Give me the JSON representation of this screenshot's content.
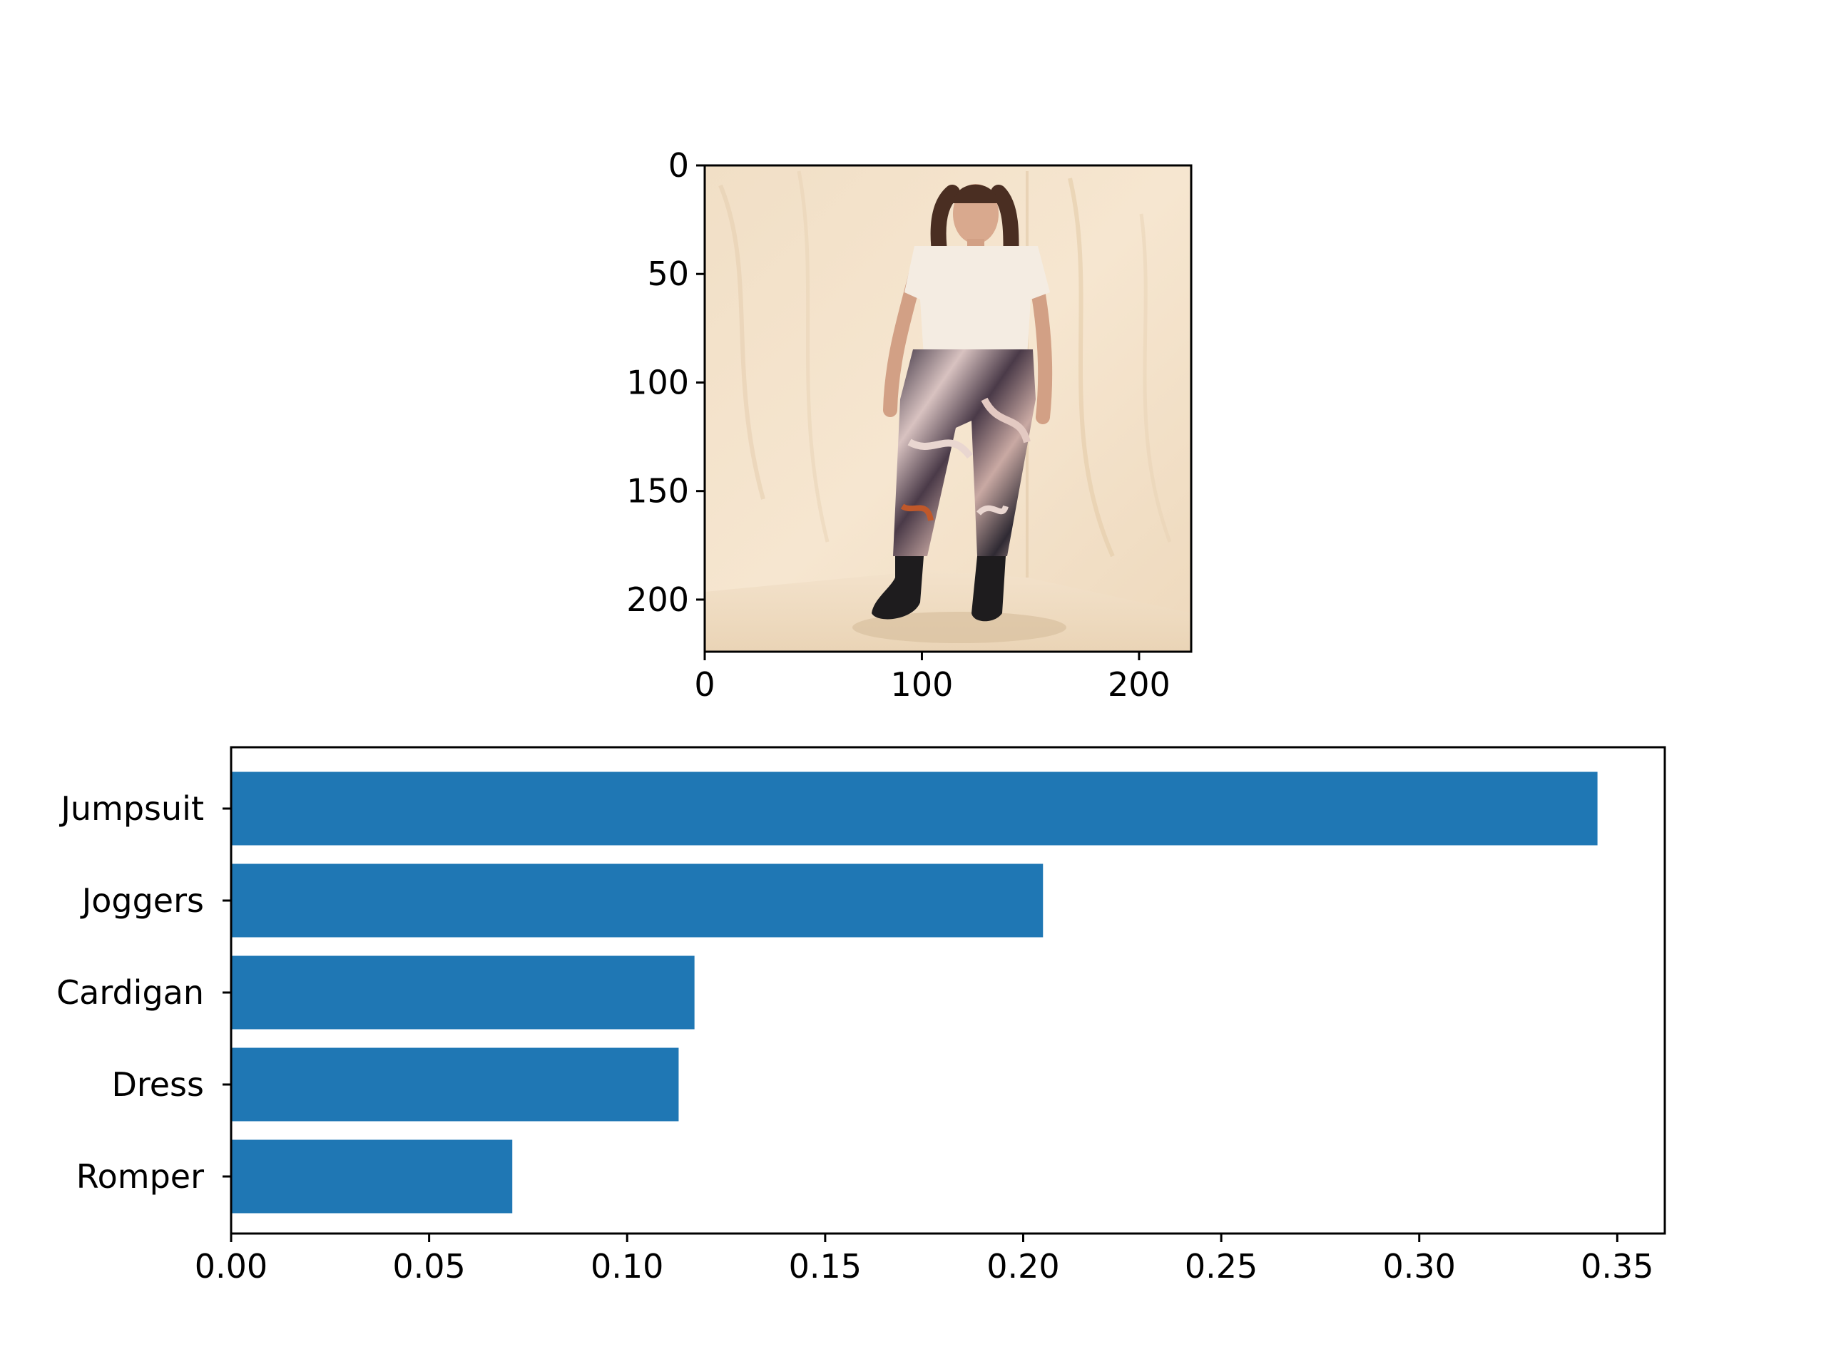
{
  "chart_data": [
    {
      "type": "image",
      "content": "photo of a model wearing a white t-shirt and marbled print joggers with black boots",
      "xlim": [
        0,
        224
      ],
      "ylim": [
        224,
        0
      ],
      "xticks": [
        "0",
        "100",
        "200"
      ],
      "yticks": [
        "0",
        "50",
        "100",
        "150",
        "200"
      ]
    },
    {
      "type": "bar",
      "orientation": "horizontal",
      "categories": [
        "Jumpsuit",
        "Joggers",
        "Cardigan",
        "Dress",
        "Romper"
      ],
      "values": [
        0.345,
        0.205,
        0.117,
        0.113,
        0.071
      ],
      "xlim": [
        0,
        0.362
      ],
      "xticks": [
        "0.00",
        "0.05",
        "0.10",
        "0.15",
        "0.20",
        "0.25",
        "0.30",
        "0.35"
      ],
      "bar_color": "#1f77b4",
      "title": "",
      "xlabel": "",
      "ylabel": "",
      "grid": false
    }
  ]
}
